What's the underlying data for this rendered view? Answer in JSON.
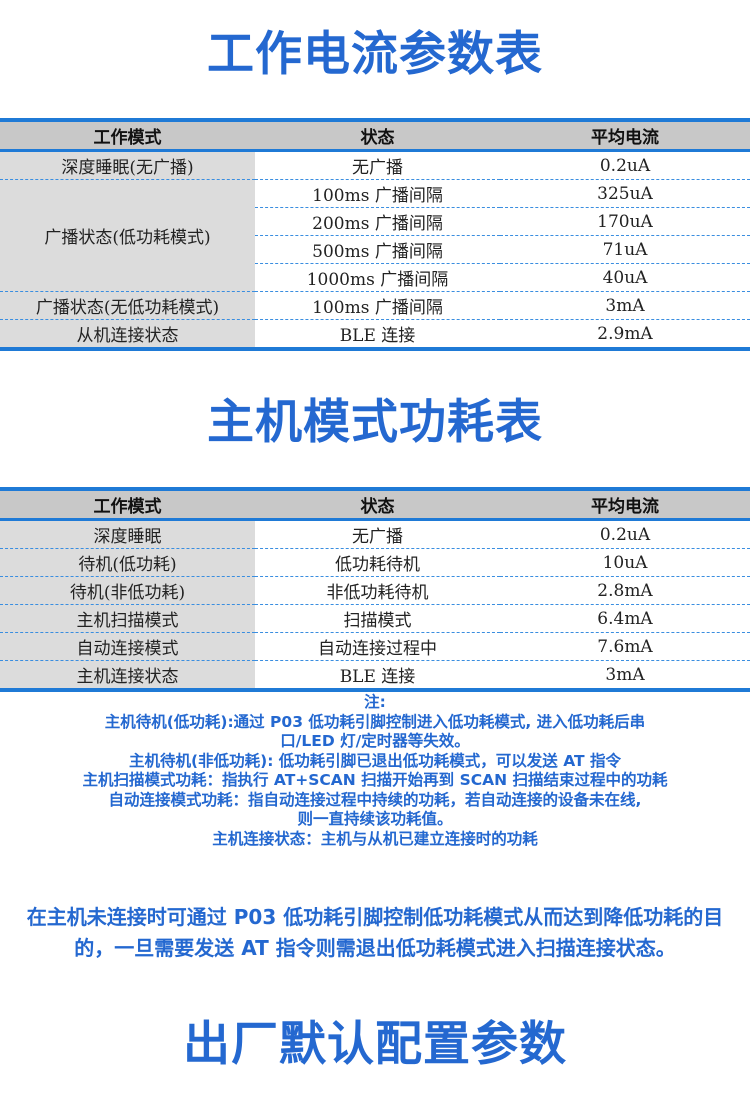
{
  "section1": {
    "title": "工作电流参数表",
    "headers": [
      "工作模式",
      "状态",
      "平均电流"
    ],
    "rows": [
      {
        "mode": "深度睡眠(无广播)",
        "state": "无广播",
        "current": "0.2uA"
      },
      {
        "mode": "广播状态(低功耗模式)",
        "state": "100ms 广播间隔",
        "current": "325uA"
      },
      {
        "mode": "",
        "state": "200ms 广播间隔",
        "current": "170uA"
      },
      {
        "mode": "",
        "state": "500ms 广播间隔",
        "current": "71uA"
      },
      {
        "mode": "",
        "state": "1000ms 广播间隔",
        "current": "40uA"
      },
      {
        "mode": "广播状态(无低功耗模式)",
        "state": "100ms 广播间隔",
        "current": "3mA"
      },
      {
        "mode": "从机连接状态",
        "state": "BLE 连接",
        "current": "2.9mA"
      }
    ]
  },
  "section2": {
    "title": "主机模式功耗表",
    "headers": [
      "工作模式",
      "状态",
      "平均电流"
    ],
    "rows": [
      {
        "mode": "深度睡眠",
        "state": "无广播",
        "current": "0.2uA"
      },
      {
        "mode": "待机(低功耗)",
        "state": "低功耗待机",
        "current": "10uA"
      },
      {
        "mode": "待机(非低功耗)",
        "state": "非低功耗待机",
        "current": "2.8mA"
      },
      {
        "mode": "主机扫描模式",
        "state": "扫描模式",
        "current": "6.4mA"
      },
      {
        "mode": "自动连接模式",
        "state": "自动连接过程中",
        "current": "7.6mA"
      },
      {
        "mode": "主机连接状态",
        "state": "BLE 连接",
        "current": "3mA"
      }
    ]
  },
  "notes": [
    "注:",
    "主机待机(低功耗):通过 P03 低功耗引脚控制进入低功耗模式, 进入低功耗后串",
    "口/LED 灯/定时器等失效。",
    "主机待机(非低功耗): 低功耗引脚已退出低功耗模式，可以发送 AT 指令",
    "主机扫描模式功耗：指执行 AT+SCAN 扫描开始再到 SCAN 扫描结束过程中的功耗",
    "自动连接模式功耗：指自动连接过程中持续的功耗，若自动连接的设备未在线,",
    "则一直持续该功耗值。",
    "主机连接状态：主机与从机已建立连接时的功耗"
  ],
  "paragraph": "在主机未连接时可通过 P03 低功耗引脚控制低功耗模式从而达到降低功耗的目的，一旦需要发送 AT 指令则需退出低功耗模式进入扫描连接状态。",
  "section3": {
    "title": "出厂默认配置参数"
  },
  "colors": {
    "accent": "#2468d0",
    "rule": "#1f7ad6",
    "header_bg": "#c8c8c8",
    "mode_col_bg": "#dcdcdc"
  }
}
